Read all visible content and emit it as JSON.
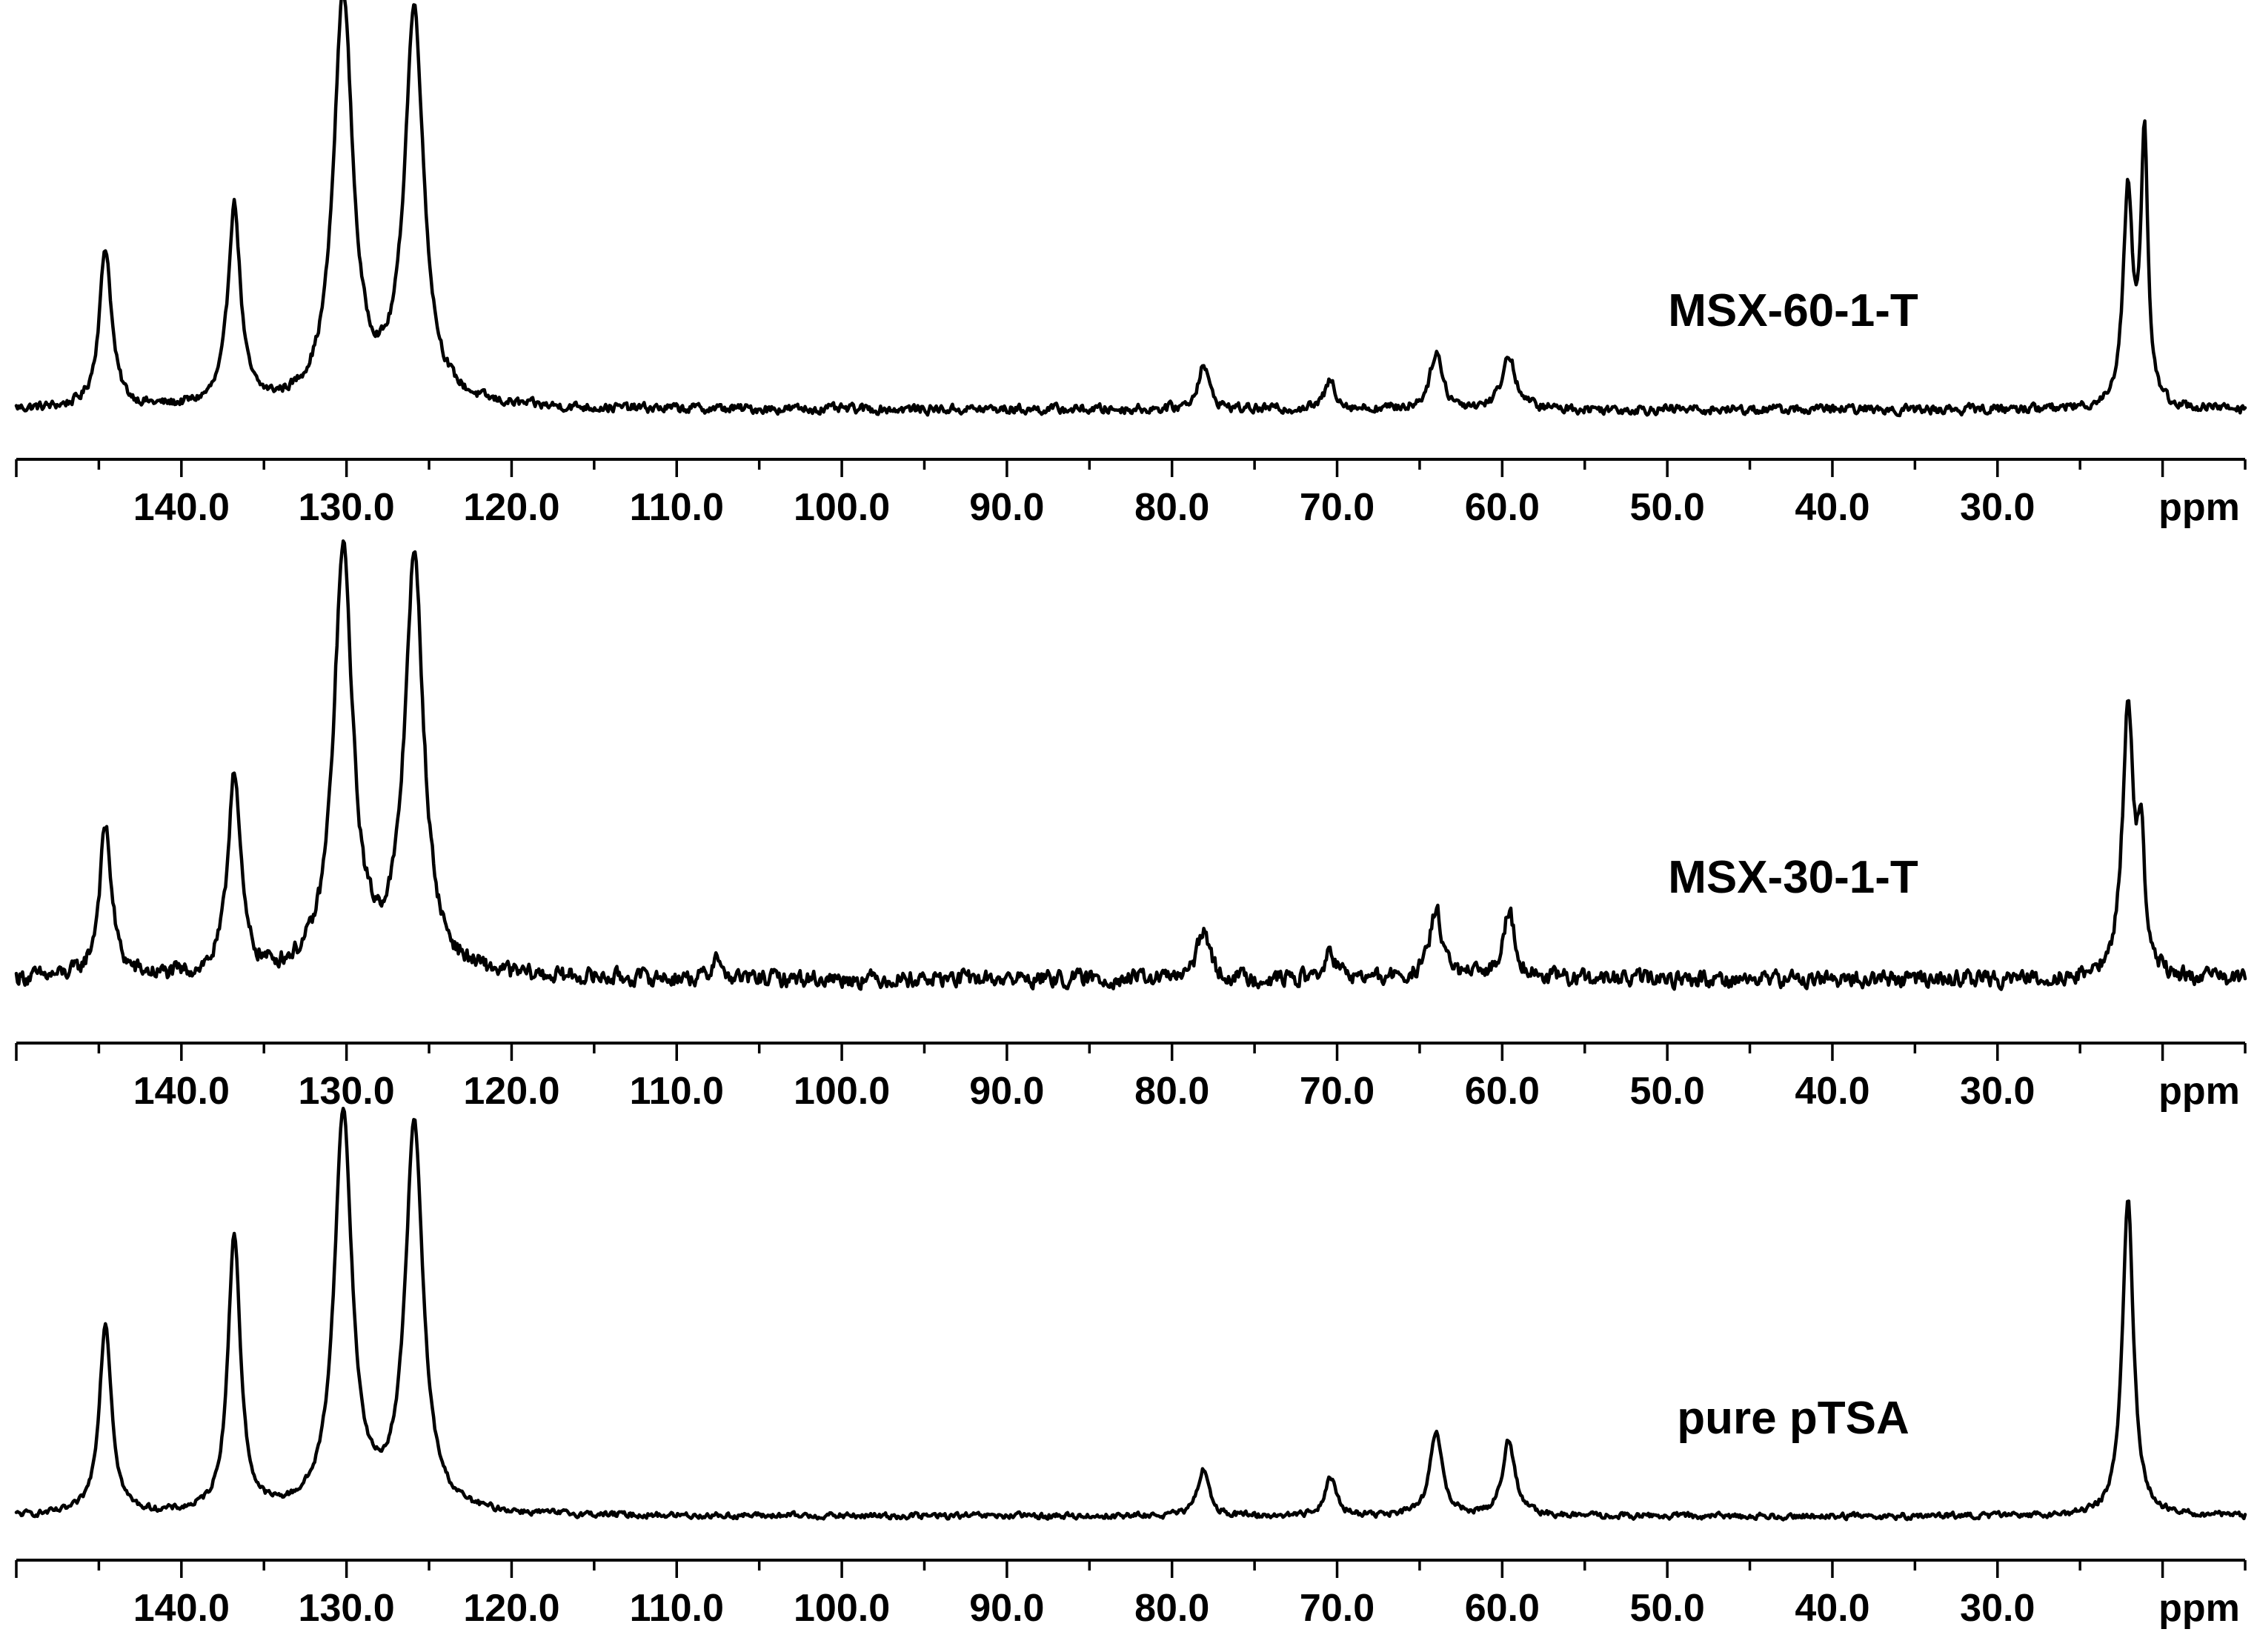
{
  "chart_data": [
    {
      "type": "line",
      "title": "",
      "sample_label": "MSX-60-1-T",
      "xlabel": "ppm",
      "xlim": [
        150.0,
        15.0
      ],
      "x_reversed": true,
      "tick_labels": [
        "140.0",
        "130.0",
        "120.0",
        "110.0",
        "100.0",
        "90.0",
        "80.0",
        "70.0",
        "60.0",
        "50.0",
        "40.0",
        "30.0"
      ],
      "ticks": [
        140,
        130,
        120,
        110,
        100,
        90,
        80,
        70,
        60,
        50,
        40,
        30
      ],
      "grid": false,
      "baseline": 0.04,
      "noise": 0.018,
      "peaks": [
        {
          "x": 144.6,
          "height": 0.39,
          "width": 0.45
        },
        {
          "x": 136.8,
          "height": 0.49,
          "width": 0.45
        },
        {
          "x": 130.2,
          "height": 1.0,
          "width": 0.7
        },
        {
          "x": 125.9,
          "height": 0.96,
          "width": 0.7
        },
        {
          "x": 78.1,
          "height": 0.11,
          "width": 0.4
        },
        {
          "x": 70.4,
          "height": 0.07,
          "width": 0.4
        },
        {
          "x": 64.0,
          "height": 0.14,
          "width": 0.45
        },
        {
          "x": 59.6,
          "height": 0.13,
          "width": 0.5
        },
        {
          "x": 22.1,
          "height": 0.52,
          "width": 0.35
        },
        {
          "x": 21.1,
          "height": 0.66,
          "width": 0.25
        }
      ]
    },
    {
      "type": "line",
      "title": "",
      "sample_label": "MSX-30-1-T",
      "xlabel": "ppm",
      "xlim": [
        150.0,
        15.0
      ],
      "x_reversed": true,
      "tick_labels": [
        "140.0",
        "130.0",
        "120.0",
        "110.0",
        "100.0",
        "90.0",
        "80.0",
        "70.0",
        "60.0",
        "50.0",
        "40.0",
        "30.0"
      ],
      "ticks": [
        140,
        130,
        120,
        110,
        100,
        90,
        80,
        70,
        60,
        50,
        40,
        30
      ],
      "grid": false,
      "baseline": 0.04,
      "noise": 0.03,
      "peaks": [
        {
          "x": 144.6,
          "height": 0.35,
          "width": 0.45
        },
        {
          "x": 136.8,
          "height": 0.48,
          "width": 0.45
        },
        {
          "x": 130.2,
          "height": 0.98,
          "width": 0.7
        },
        {
          "x": 125.9,
          "height": 0.96,
          "width": 0.7
        },
        {
          "x": 107.6,
          "height": 0.07,
          "width": 0.2
        },
        {
          "x": 78.1,
          "height": 0.12,
          "width": 0.4
        },
        {
          "x": 70.4,
          "height": 0.06,
          "width": 0.4
        },
        {
          "x": 64.0,
          "height": 0.16,
          "width": 0.45
        },
        {
          "x": 59.6,
          "height": 0.16,
          "width": 0.45
        },
        {
          "x": 22.1,
          "height": 0.62,
          "width": 0.4
        },
        {
          "x": 21.3,
          "height": 0.3,
          "width": 0.25
        }
      ]
    },
    {
      "type": "line",
      "title": "",
      "sample_label": "pure pTSA",
      "xlabel": "ppm",
      "xlim": [
        150.0,
        15.0
      ],
      "x_reversed": true,
      "tick_labels": [
        "140.0",
        "130.0",
        "120.0",
        "110.0",
        "100.0",
        "90.0",
        "80.0",
        "70.0",
        "60.0",
        "50.0",
        "40.0",
        "30.0"
      ],
      "ticks": [
        140,
        130,
        120,
        110,
        100,
        90,
        80,
        70,
        60,
        50,
        40,
        30
      ],
      "grid": false,
      "baseline": 0.03,
      "noise": 0.012,
      "peaks": [
        {
          "x": 144.6,
          "height": 0.48,
          "width": 0.45
        },
        {
          "x": 136.8,
          "height": 0.7,
          "width": 0.45
        },
        {
          "x": 130.2,
          "height": 1.0,
          "width": 0.65
        },
        {
          "x": 125.9,
          "height": 0.97,
          "width": 0.65
        },
        {
          "x": 78.1,
          "height": 0.12,
          "width": 0.4
        },
        {
          "x": 70.4,
          "height": 0.1,
          "width": 0.4
        },
        {
          "x": 64.0,
          "height": 0.21,
          "width": 0.45
        },
        {
          "x": 59.6,
          "height": 0.19,
          "width": 0.45
        },
        {
          "x": 22.1,
          "height": 0.8,
          "width": 0.4
        }
      ]
    }
  ]
}
